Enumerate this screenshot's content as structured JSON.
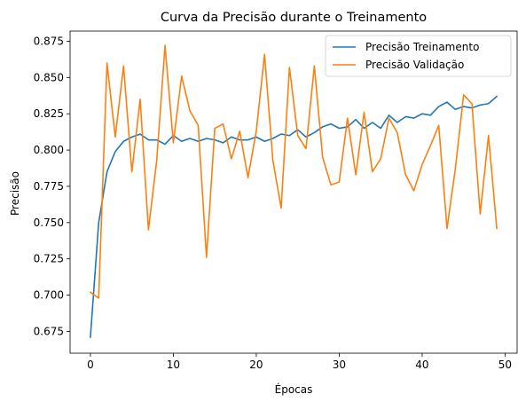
{
  "chart_data": {
    "type": "line",
    "title": "Curva da Precisão durante o Treinamento",
    "xlabel": "Épocas",
    "ylabel": "Precisão",
    "xlim": [
      -2.45,
      51.45
    ],
    "ylim": [
      0.66,
      0.882
    ],
    "xticks": [
      0,
      10,
      20,
      30,
      40,
      50
    ],
    "yticks": [
      0.675,
      0.7,
      0.725,
      0.75,
      0.775,
      0.8,
      0.825,
      0.85,
      0.875
    ],
    "ytick_labels": [
      "0.675",
      "0.700",
      "0.725",
      "0.750",
      "0.775",
      "0.800",
      "0.825",
      "0.850",
      "0.875"
    ],
    "grid": false,
    "legend_position": "top-right",
    "x": [
      0,
      1,
      2,
      3,
      4,
      5,
      6,
      7,
      8,
      9,
      10,
      11,
      12,
      13,
      14,
      15,
      16,
      17,
      18,
      19,
      20,
      21,
      22,
      23,
      24,
      25,
      26,
      27,
      28,
      29,
      30,
      31,
      32,
      33,
      34,
      35,
      36,
      37,
      38,
      39,
      40,
      41,
      42,
      43,
      44,
      45,
      46,
      47,
      48,
      49
    ],
    "series": [
      {
        "name": "Precisão Treinamento",
        "color": "#1f77b4",
        "values": [
          0.671,
          0.75,
          0.785,
          0.799,
          0.806,
          0.809,
          0.811,
          0.807,
          0.807,
          0.804,
          0.81,
          0.806,
          0.808,
          0.806,
          0.808,
          0.807,
          0.805,
          0.809,
          0.807,
          0.807,
          0.809,
          0.806,
          0.808,
          0.811,
          0.81,
          0.814,
          0.809,
          0.812,
          0.816,
          0.818,
          0.815,
          0.816,
          0.821,
          0.815,
          0.819,
          0.815,
          0.824,
          0.819,
          0.823,
          0.822,
          0.825,
          0.824,
          0.83,
          0.833,
          0.828,
          0.83,
          0.829,
          0.831,
          0.832,
          0.837
        ]
      },
      {
        "name": "Precisão Validação",
        "color": "#ff7f0e",
        "values": [
          0.702,
          0.698,
          0.86,
          0.809,
          0.858,
          0.785,
          0.835,
          0.745,
          0.793,
          0.872,
          0.805,
          0.851,
          0.827,
          0.817,
          0.726,
          0.815,
          0.818,
          0.794,
          0.813,
          0.781,
          0.813,
          0.866,
          0.793,
          0.76,
          0.857,
          0.81,
          0.801,
          0.858,
          0.795,
          0.776,
          0.778,
          0.822,
          0.783,
          0.826,
          0.785,
          0.794,
          0.822,
          0.812,
          0.783,
          0.772,
          0.79,
          0.803,
          0.817,
          0.746,
          0.787,
          0.838,
          0.832,
          0.756,
          0.81,
          0.746
        ]
      }
    ]
  }
}
